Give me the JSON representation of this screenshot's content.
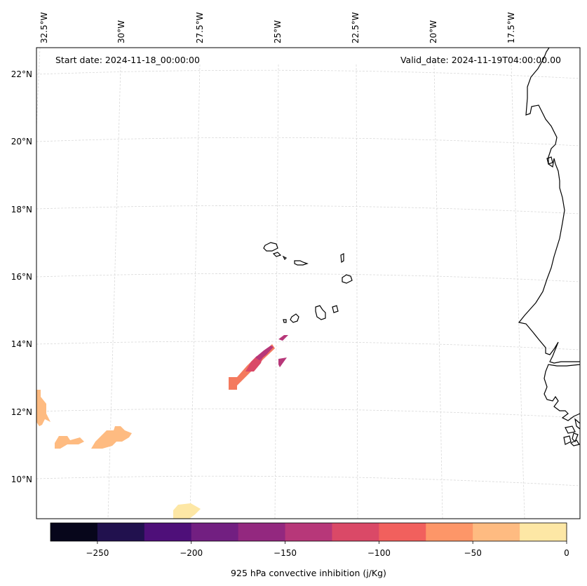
{
  "map": {
    "start_date": "Start date: 2024-11-18_00:00:00",
    "valid_date": "Valid_date: 2024-11-19T04:00:00.00",
    "longitude_labels": [
      "32.5°W",
      "30°W",
      "27.5°W",
      "25°W",
      "22.5°W",
      "20°W",
      "17.5°W"
    ],
    "latitude_labels": [
      "22°N",
      "20°N",
      "18°N",
      "16°N",
      "14°N",
      "12°N",
      "10°N"
    ],
    "gridlines": true
  },
  "colorbar": {
    "label": "925 hPa convective inhibition (j/Kg)",
    "ticks": [
      "−250",
      "−200",
      "−150",
      "−100",
      "−50",
      "0"
    ],
    "tick_values": [
      -250,
      -200,
      -150,
      -100,
      -50,
      0
    ],
    "min": -275,
    "max": 0,
    "levels": [
      -275,
      -250,
      -225,
      -200,
      -175,
      -150,
      -125,
      -100,
      -75,
      -50,
      -25,
      0
    ],
    "colors": [
      "#07061b",
      "#21114e",
      "#4e0f79",
      "#721f81",
      "#93287f",
      "#b73779",
      "#da4967",
      "#f1605d",
      "#fd9668",
      "#febb81",
      "#fde7a5"
    ]
  },
  "colors": {
    "coastline": "#000000",
    "gridline": "#d9d9d9"
  }
}
